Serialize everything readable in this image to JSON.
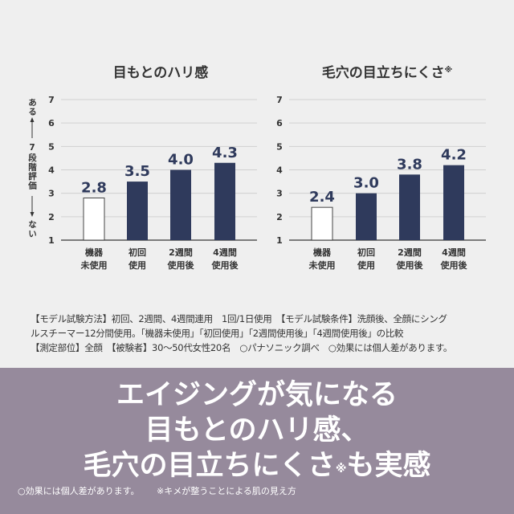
{
  "chart_data": [
    {
      "type": "bar",
      "title": "目もとのハリ感",
      "title_suffix": "",
      "ylabel_top": "ある",
      "ylabel_mid": "7段階評価",
      "ylabel_bottom": "ない",
      "ylim": [
        1,
        7
      ],
      "yticks": [
        "1",
        "2",
        "3",
        "4",
        "5",
        "6",
        "7"
      ],
      "categories": [
        [
          "機器",
          "未使用"
        ],
        [
          "初回",
          "使用"
        ],
        [
          "2週間",
          "使用後"
        ],
        [
          "4週間",
          "使用後"
        ]
      ],
      "values": [
        2.8,
        3.5,
        4.0,
        4.3
      ],
      "labels": [
        "2.8",
        "3.5",
        "4.0",
        "4.3"
      ]
    },
    {
      "type": "bar",
      "title": "毛穴の目立ちにくさ",
      "title_suffix": "※",
      "ylim": [
        1,
        7
      ],
      "yticks": [
        "1",
        "2",
        "3",
        "4",
        "5",
        "6",
        "7"
      ],
      "categories": [
        [
          "機器",
          "未使用"
        ],
        [
          "初回",
          "使用"
        ],
        [
          "2週間",
          "使用後"
        ],
        [
          "4週間",
          "使用後"
        ]
      ],
      "values": [
        2.4,
        3.0,
        3.8,
        4.2
      ],
      "labels": [
        "2.4",
        "3.0",
        "3.8",
        "4.2"
      ]
    }
  ],
  "colors": {
    "bar": "#2f3a5c",
    "baseline_bar": "#ffffff",
    "band": "#968a9c"
  },
  "note": [
    "【モデル試験方法】初回、2週間、4週間連用　1回/1日使用　【モデル試験条件】洗顔後、全顔にシング",
    "ルスチーマー12分間使用。「機器未使用」「初回使用」「2週間使用後」「4週間使用後」の比較",
    "【測定部位】全顔　【被験者】30〜50代女性20名　○パナソニック調べ　○効果には個人差があります。"
  ],
  "headline": {
    "line1": "エイジングが気になる",
    "line2": "目もとのハリ感、",
    "line3a": "毛穴の目立ちにくさ",
    "line3mark": "※",
    "line3b": "も実感"
  },
  "footnote": {
    "a": "○効果には個人差があります。",
    "b": "※キメが整うことによる肌の見え方"
  }
}
